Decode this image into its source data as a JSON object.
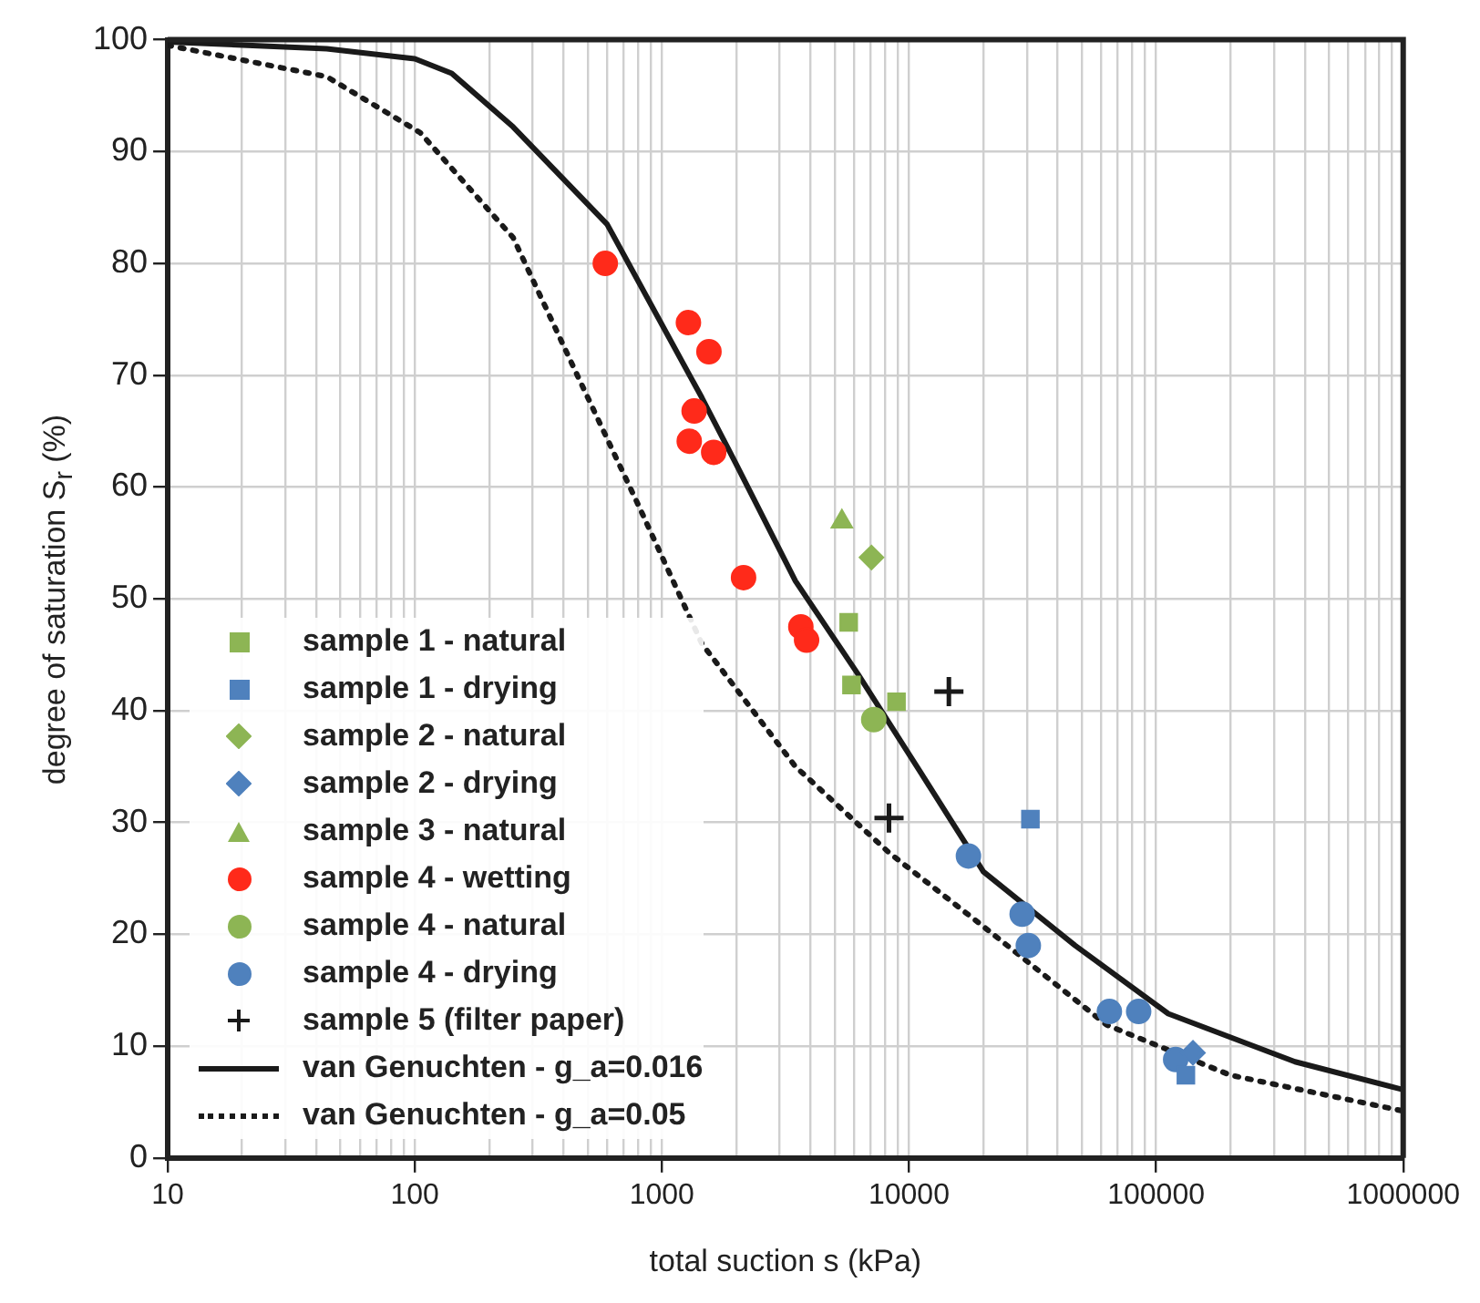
{
  "chart_data": {
    "type": "scatter",
    "xlabel": "total suction s (kPa)",
    "ylabel": "degree of saturation S$_{r}$ (%)",
    "log": "x",
    "xlim": [
      10,
      1000000
    ],
    "ylim": [
      0,
      100
    ],
    "xticks": [
      10,
      {
        "value": 20,
        "label": null
      },
      {
        "value": 30,
        "label": null
      },
      {
        "value": 40,
        "label": null
      },
      {
        "value": 50,
        "label": null
      },
      {
        "value": 60,
        "label": null
      },
      {
        "value": 70,
        "label": null
      },
      {
        "value": 80,
        "label": null
      },
      {
        "value": 90,
        "label": null
      },
      100,
      {
        "value": 200,
        "label": null
      },
      {
        "value": 300,
        "label": null
      },
      {
        "value": 400,
        "label": null
      },
      {
        "value": 500,
        "label": null
      },
      {
        "value": 600,
        "label": null
      },
      {
        "value": 700,
        "label": null
      },
      {
        "value": 800,
        "label": null
      },
      {
        "value": 900,
        "label": null
      },
      1000,
      {
        "value": 2000,
        "label": null
      },
      {
        "value": 3000,
        "label": null
      },
      {
        "value": 4000,
        "label": null
      },
      {
        "value": 5000,
        "label": null
      },
      {
        "value": 6000,
        "label": null
      },
      {
        "value": 7000,
        "label": null
      },
      {
        "value": 8000,
        "label": null
      },
      {
        "value": 9000,
        "label": null
      },
      10000,
      {
        "value": 20000,
        "label": null
      },
      {
        "value": 30000,
        "label": null
      },
      {
        "value": 40000,
        "label": null
      },
      {
        "value": 50000,
        "label": null
      },
      {
        "value": 60000,
        "label": null
      },
      {
        "value": 70000,
        "label": null
      },
      {
        "value": 80000,
        "label": null
      },
      {
        "value": 90000,
        "label": null
      },
      100000,
      {
        "value": 200000,
        "label": null
      },
      {
        "value": 300000,
        "label": null
      },
      {
        "value": 400000,
        "label": null
      },
      {
        "value": 500000,
        "label": null
      },
      {
        "value": 600000,
        "label": null
      },
      {
        "value": 700000,
        "label": null
      },
      {
        "value": 800000,
        "label": null
      },
      {
        "value": 900000,
        "label": null
      },
      1000000
    ],
    "yticks": [
      0,
      10,
      20,
      30,
      40,
      50,
      60,
      70,
      80,
      90,
      100
    ],
    "grid": true,
    "legend": "bottom left",
    "series": [
      {
        "name": "sample 1 - natural",
        "type": "scatter",
        "marker": "square",
        "color": "#8db554",
        "x": [
          5700,
          5850,
          8900
        ],
        "values": [
          47.9,
          42.3,
          40.8
        ]
      },
      {
        "name": "sample 1 - drying",
        "type": "scatter",
        "marker": "square",
        "color": "#4f81bd",
        "x": [
          31000,
          132000
        ],
        "values": [
          30.3,
          7.4
        ]
      },
      {
        "name": "sample 2 - natural",
        "type": "scatter",
        "marker": "diamond",
        "color": "#8db554",
        "x": [
          7050
        ],
        "values": [
          53.7
        ]
      },
      {
        "name": "sample 2 - drying",
        "type": "scatter",
        "marker": "diamond",
        "color": "#4f81bd",
        "x": [
          141000
        ],
        "values": [
          9.4
        ]
      },
      {
        "name": "sample 3 - natural",
        "type": "scatter",
        "marker": "triangle",
        "color": "#8db554",
        "x": [
          5350
        ],
        "values": [
          56.9
        ]
      },
      {
        "name": "sample 4 - wetting",
        "type": "scatter",
        "marker": "circle",
        "color": "#ff2a1a",
        "x": [
          590,
          1280,
          1550,
          1350,
          1290,
          1620,
          2140,
          3650,
          3850
        ],
        "values": [
          80,
          74.7,
          72.1,
          66.8,
          64.1,
          63.1,
          51.9,
          47.5,
          46.3
        ]
      },
      {
        "name": "sample 4 - natural",
        "type": "scatter",
        "marker": "circle",
        "color": "#8db554",
        "x": [
          7200
        ],
        "values": [
          39.2
        ]
      },
      {
        "name": "sample 4 - drying",
        "type": "scatter",
        "marker": "circle",
        "color": "#4f81bd",
        "x": [
          17400,
          28700,
          30400,
          64700,
          85000,
          120000
        ],
        "values": [
          27.0,
          21.8,
          19.0,
          13.1,
          13.1,
          8.8
        ]
      },
      {
        "name": "sample 5 (filter paper)",
        "type": "scatter",
        "marker": "cross",
        "color": "#1a1a1a",
        "x": [
          14500,
          8300
        ],
        "values": [
          41.7,
          30.4
        ]
      },
      {
        "name": "van Genuchten - g_a=0.016",
        "type": "line",
        "line_style": "solid",
        "color": "#1a1a1a",
        "x": [
          10,
          44,
          100,
          141,
          250,
          600,
          1450,
          1950,
          3470,
          6200,
          11200,
          20000,
          47000,
          112000,
          365000,
          1000000
        ],
        "values": [
          99.8,
          99.2,
          98.3,
          97,
          92.2,
          83.5,
          68,
          62.5,
          51.6,
          43.3,
          34.4,
          25.6,
          19,
          12.9,
          8.6,
          6.1
        ]
      },
      {
        "name": "van Genuchten - g_a=0.05",
        "type": "line",
        "line_style": "dotted",
        "color": "#1a1a1a",
        "x": [
          10,
          44,
          105,
          250,
          450,
          810,
          1450,
          3470,
          8300,
          20000,
          63000,
          200000,
          1000000
        ],
        "values": [
          99.5,
          96.7,
          91.7,
          82.3,
          70.2,
          58.2,
          46,
          35,
          27.3,
          20.7,
          11.9,
          7.4,
          4.2
        ]
      }
    ]
  }
}
